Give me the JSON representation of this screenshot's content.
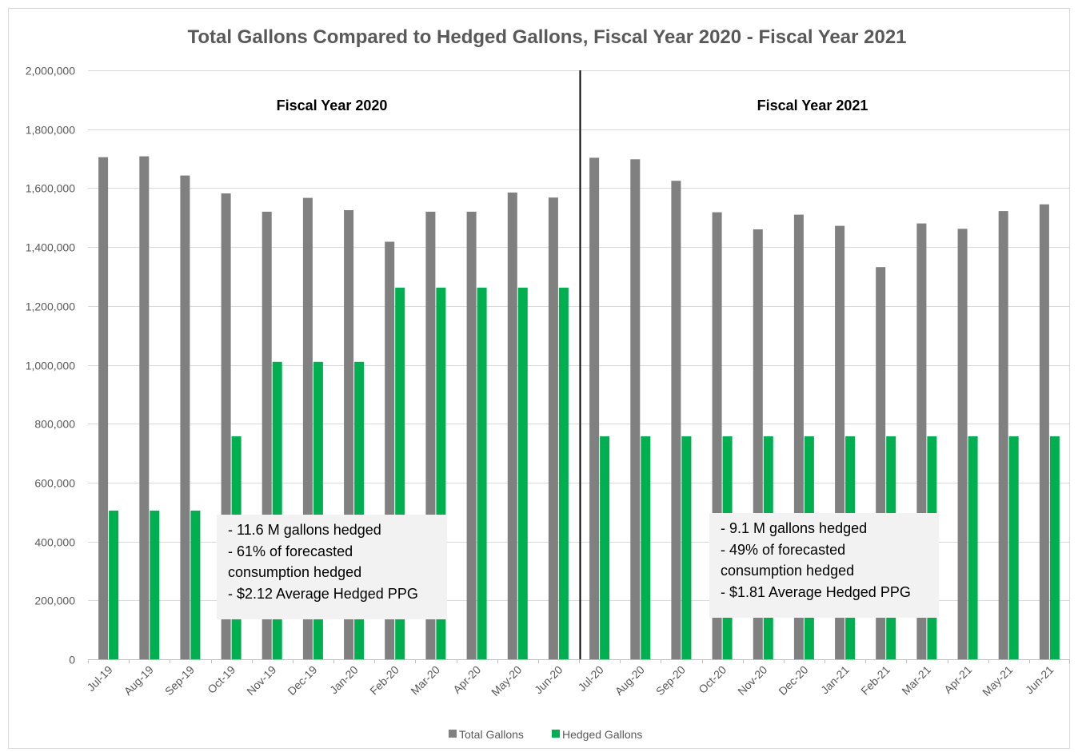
{
  "chart_data": {
    "type": "bar",
    "title": "Total Gallons Compared to Hedged Gallons, Fiscal Year 2020 - Fiscal Year 2021",
    "xlabel": "",
    "ylabel": "",
    "ylim": [
      0,
      2000000
    ],
    "yticks": [
      "0",
      "200,000",
      "400,000",
      "600,000",
      "800,000",
      "1,000,000",
      "1,200,000",
      "1,400,000",
      "1,600,000",
      "1,800,000",
      "2,000,000"
    ],
    "grid": true,
    "legend_position": "bottom",
    "categories": [
      "Jul-19",
      "Aug-19",
      "Sep-19",
      "Oct-19",
      "Nov-19",
      "Dec-19",
      "Jan-20",
      "Feb-20",
      "Mar-20",
      "Apr-20",
      "May-20",
      "Jun-20",
      "Jul-20",
      "Aug-20",
      "Sep-20",
      "Oct-20",
      "Nov-20",
      "Dec-20",
      "Jan-21",
      "Feb-21",
      "Mar-21",
      "Apr-21",
      "May-21",
      "Jun-21"
    ],
    "series": [
      {
        "name": "Total Gallons",
        "color": "#808080",
        "values": [
          1705000,
          1708000,
          1643000,
          1582000,
          1520000,
          1567000,
          1525000,
          1418000,
          1520000,
          1520000,
          1585000,
          1568000,
          1703000,
          1698000,
          1625000,
          1518000,
          1460000,
          1510000,
          1472000,
          1332000,
          1480000,
          1462000,
          1522000,
          1545000
        ]
      },
      {
        "name": "Hedged Gallons",
        "color": "#00b050",
        "values": [
          505000,
          505000,
          505000,
          757000,
          1010000,
          1010000,
          1010000,
          1262000,
          1262000,
          1262000,
          1262000,
          1262000,
          757000,
          757000,
          757000,
          757000,
          757000,
          757000,
          757000,
          757000,
          757000,
          757000,
          757000,
          757000
        ]
      }
    ],
    "annotations": [
      {
        "label": "Fiscal Year 2020"
      },
      {
        "label": "Fiscal Year 2021"
      }
    ],
    "notes": [
      {
        "lines": [
          "- 11.6 M gallons hedged",
          "- 61% of forecasted",
          "consumption hedged",
          "- $2.12 Average Hedged PPG"
        ]
      },
      {
        "lines": [
          "- 9.1 M gallons hedged",
          "- 49% of forecasted",
          "consumption hedged",
          "- $1.81 Average Hedged PPG"
        ]
      }
    ]
  }
}
